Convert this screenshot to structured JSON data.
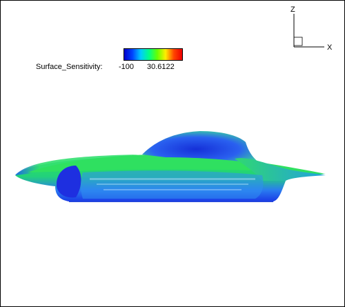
{
  "legend": {
    "label": "Surface_Sensitivity:",
    "min": "-100",
    "max": "30.6122",
    "colors": [
      "#0000cc",
      "#0044ff",
      "#00ccff",
      "#00ff88",
      "#66ff00",
      "#ffee00",
      "#ff4400",
      "#ee0000"
    ]
  },
  "axes": {
    "z_label": "Z",
    "x_label": "X"
  },
  "colors": {
    "background": "#ffffff",
    "body_green": "#22dd55",
    "body_blue": "#1a40e8",
    "body_cyan": "#33bbee"
  }
}
